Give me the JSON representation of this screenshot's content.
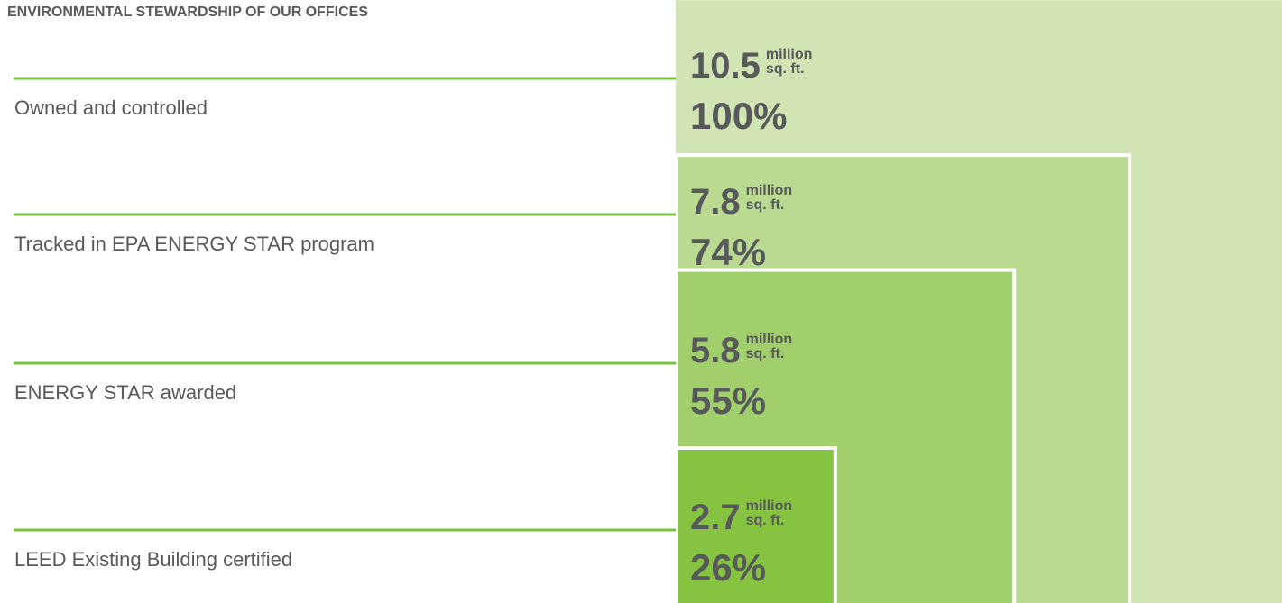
{
  "chart_data": {
    "type": "nested",
    "title": "ENVIRONMENTAL STEWARDSHIP OF OUR OFFICES",
    "categories": [
      "Owned and controlled",
      "Tracked in EPA ENERGY STAR program",
      "ENERGY STAR awarded",
      "LEED Existing Building certified"
    ],
    "values": [
      10.5,
      7.8,
      5.8,
      2.7
    ],
    "unit": [
      "million",
      "sq. ft."
    ],
    "shares": [
      100,
      74,
      55,
      26
    ],
    "share_labels": [
      "100%",
      "74%",
      "55%",
      "26%"
    ],
    "colors": [
      "#d0e5b3",
      "#b9da90",
      "#a0cf6c",
      "#86c341"
    ],
    "line_color": "#7dc142"
  }
}
